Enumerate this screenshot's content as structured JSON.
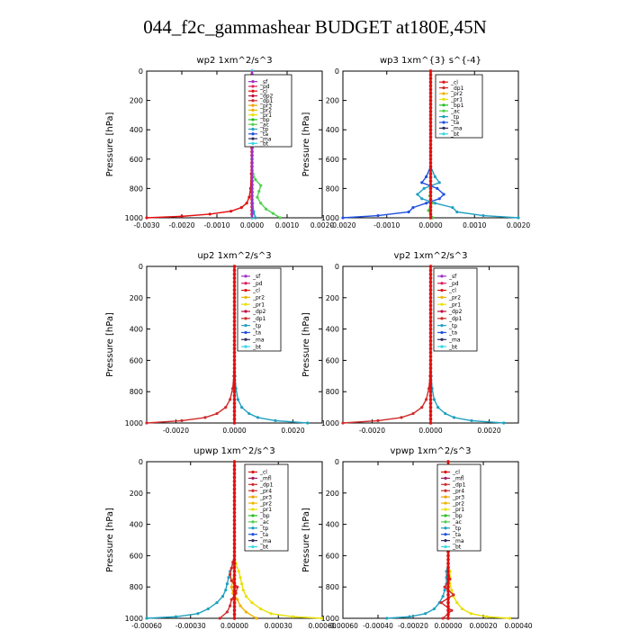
{
  "page": {
    "title": "044_f2c_gammashear  BUDGET at180E,45N"
  },
  "colors": {
    "_sf": "#9b30c8",
    "_pd": "#e0205a",
    "_cl": "#e01010",
    "_dp2": "#c01040",
    "_dp1": "#d02a2a",
    "_pr3": "#f0a000",
    "_pr2": "#f0b400",
    "_pr1": "#e8e000",
    "_bp": "#22c020",
    "_bp1": "#22c020",
    "_ac": "#50d050",
    "_tp": "#1fa0c0",
    "_ta": "#2050e0",
    "_ma": "#303060",
    "_bt": "#30d8e8",
    "_mfl": "#a02060",
    "_pr4": "#d02a2a",
    "_dp4": "#b01020"
  },
  "chart_data": [
    {
      "type": "line",
      "title": "wp2   1xm^2/s^3",
      "ylabel": "Pressure [hPa]",
      "ylim": [
        1000,
        0
      ],
      "xlim": [
        -0.003,
        0.002
      ],
      "xticks": [
        "-0.0030",
        "-0.0020",
        "-0.0010",
        "0.0000",
        "0.0010",
        "0.0020"
      ],
      "xtick_values": [
        -0.003,
        -0.002,
        -0.001,
        0.0,
        0.001,
        0.002
      ],
      "yticks": [
        "0",
        "200",
        "400",
        "600",
        "800",
        "1000"
      ],
      "ytick_values": [
        0,
        200,
        400,
        600,
        800,
        1000
      ],
      "legend": [
        "_sf",
        "_pd",
        "_cl",
        "_dp2",
        "_dp1",
        "_pr3",
        "_pr2",
        "_pr1",
        "_bp",
        "_ac",
        "_tp",
        "_ta",
        "_ma",
        "_bt"
      ],
      "legend_position": "top-right",
      "series": [
        {
          "name": "_cl",
          "p": [
            1000,
            990,
            975,
            955,
            930,
            900,
            860,
            800,
            700,
            500,
            0
          ],
          "values": [
            -0.003,
            -0.002,
            -0.0012,
            -0.0006,
            -0.0003,
            -0.00015,
            -8e-05,
            -4e-05,
            -2e-05,
            0,
            0
          ]
        },
        {
          "name": "_ac",
          "p": [
            1000,
            970,
            940,
            900,
            860,
            820,
            780,
            740,
            700,
            600,
            0
          ],
          "values": [
            0.0008,
            0.0006,
            0.0004,
            0.00025,
            0.00015,
            0.0002,
            0.00025,
            0.0001,
            3e-05,
            0,
            0
          ]
        },
        {
          "name": "_tp",
          "p": [
            1000,
            960,
            900,
            800,
            600,
            0
          ],
          "values": [
            0.0001,
            5e-05,
            2e-05,
            0,
            0,
            0
          ]
        },
        {
          "name": "_sf",
          "p": [
            1000,
            0
          ],
          "values": [
            0,
            0
          ]
        },
        {
          "name": "_bt",
          "p": [
            1000,
            0
          ],
          "values": [
            0,
            0
          ]
        }
      ]
    },
    {
      "type": "line",
      "title": "wp3   1xm^{3} s^{-4}",
      "ylabel": "Pressure [hPa]",
      "ylim": [
        1000,
        0
      ],
      "xlim": [
        -0.002,
        0.002
      ],
      "xticks": [
        "-0.0020",
        "-0.0010",
        "0.0000",
        "0.0010",
        "0.0020"
      ],
      "xtick_values": [
        -0.002,
        -0.001,
        0.0,
        0.001,
        0.002
      ],
      "yticks": [
        "0",
        "200",
        "400",
        "600",
        "800",
        "1000"
      ],
      "ytick_values": [
        0,
        200,
        400,
        600,
        800,
        1000
      ],
      "legend": [
        "_cl",
        "_dp1",
        "_pr2",
        "_pr1",
        "_bp1",
        "_ac",
        "_tp",
        "_ta",
        "_ma",
        "_bt"
      ],
      "legend_position": "top-right",
      "series": [
        {
          "name": "_ta",
          "p": [
            1000,
            985,
            960,
            930,
            900,
            870,
            840,
            800,
            760,
            720,
            650,
            0
          ],
          "values": [
            -0.002,
            -0.0012,
            -0.0005,
            -0.0004,
            -0.0001,
            0.0002,
            0.0003,
            0.00015,
            -0.0002,
            -0.0001,
            0,
            0
          ]
        },
        {
          "name": "_tp",
          "p": [
            1000,
            985,
            960,
            930,
            900,
            870,
            840,
            800,
            760,
            720,
            650,
            0
          ],
          "values": [
            0.002,
            0.0012,
            0.0006,
            0.0005,
            0.0001,
            -0.0002,
            -0.0003,
            -0.00015,
            0.0002,
            0.0001,
            0,
            0
          ]
        },
        {
          "name": "_ac",
          "p": [
            1000,
            950,
            900,
            850,
            800,
            0
          ],
          "values": [
            5e-05,
            -5e-05,
            3e-05,
            -2e-05,
            0,
            0
          ]
        },
        {
          "name": "_cl",
          "p": [
            1000,
            0
          ],
          "values": [
            0,
            0
          ]
        }
      ]
    },
    {
      "type": "line",
      "title": "up2   1xm^2/s^3",
      "ylabel": "Pressure [hPa]",
      "ylim": [
        1000,
        0
      ],
      "xlim": [
        -0.003,
        0.003
      ],
      "xticks": [
        "-0.0020",
        "0.0000",
        "0.0020"
      ],
      "xtick_values": [
        -0.002,
        0.0,
        0.002
      ],
      "yticks": [
        "0",
        "200",
        "400",
        "600",
        "800",
        "1000"
      ],
      "ytick_values": [
        0,
        200,
        400,
        600,
        800,
        1000
      ],
      "legend": [
        "_sf",
        "_pd",
        "_cl",
        "_pr2",
        "_pr1",
        "_dp2",
        "_dp1",
        "_tp",
        "_ta",
        "_ma",
        "_bt"
      ],
      "legend_position": "top-right",
      "series": [
        {
          "name": "_dp1",
          "p": [
            1000,
            985,
            965,
            940,
            900,
            850,
            780,
            700,
            500,
            0
          ],
          "values": [
            -0.003,
            -0.0018,
            -0.001,
            -0.0006,
            -0.0003,
            -0.00015,
            -6e-05,
            -2e-05,
            0,
            0
          ]
        },
        {
          "name": "_tp",
          "p": [
            1000,
            985,
            965,
            940,
            900,
            850,
            780,
            700,
            500,
            0
          ],
          "values": [
            0.0025,
            0.0014,
            0.0008,
            0.0005,
            0.00025,
            0.00012,
            5e-05,
            2e-05,
            0,
            0
          ]
        },
        {
          "name": "_cl",
          "p": [
            1000,
            0
          ],
          "values": [
            0,
            0
          ]
        }
      ]
    },
    {
      "type": "line",
      "title": "vp2   1xm^2/s^3",
      "ylabel": "Pressure [hPa]",
      "ylim": [
        1000,
        0
      ],
      "xlim": [
        -0.003,
        0.003
      ],
      "xticks": [
        "-0.0020",
        "0.0000",
        "0.0020"
      ],
      "xtick_values": [
        -0.002,
        0.0,
        0.002
      ],
      "yticks": [
        "0",
        "200",
        "400",
        "600",
        "800",
        "1000"
      ],
      "ytick_values": [
        0,
        200,
        400,
        600,
        800,
        1000
      ],
      "legend": [
        "_sf",
        "_pd",
        "_cl",
        "_pr2",
        "_pr1",
        "_dp2",
        "_dp1",
        "_tp",
        "_ta",
        "_ma",
        "_bt"
      ],
      "legend_position": "top-right",
      "series": [
        {
          "name": "_dp1",
          "p": [
            1000,
            985,
            965,
            940,
            900,
            850,
            780,
            700,
            500,
            0
          ],
          "values": [
            -0.003,
            -0.0018,
            -0.001,
            -0.0006,
            -0.0003,
            -0.00015,
            -6e-05,
            -2e-05,
            0,
            0
          ]
        },
        {
          "name": "_tp",
          "p": [
            1000,
            985,
            965,
            940,
            900,
            850,
            780,
            700,
            500,
            0
          ],
          "values": [
            0.0025,
            0.0014,
            0.0008,
            0.0005,
            0.00025,
            0.00012,
            5e-05,
            2e-05,
            0,
            0
          ]
        },
        {
          "name": "_cl",
          "p": [
            1000,
            0
          ],
          "values": [
            0,
            0
          ]
        }
      ]
    },
    {
      "type": "line",
      "title": "upwp   1xm^2/s^3",
      "ylabel": "Pressure [hPa]",
      "ylim": [
        1000,
        0
      ],
      "xlim": [
        -0.0006,
        0.0006
      ],
      "xticks": [
        "-0.00060",
        "-0.00030",
        "0.00000",
        "0.00030",
        "0.00060"
      ],
      "xtick_values": [
        -0.0006,
        -0.0003,
        0.0,
        0.0003,
        0.0006
      ],
      "yticks": [
        "0",
        "200",
        "400",
        "600",
        "800",
        "1000"
      ],
      "ytick_values": [
        0,
        200,
        400,
        600,
        800,
        1000
      ],
      "legend": [
        "_cl",
        "_mfl",
        "_dp1",
        "_pr4",
        "_pr3",
        "_pr2",
        "_pr1",
        "_bp",
        "_ac",
        "_tp",
        "_ta",
        "_ma",
        "_bt"
      ],
      "legend_position": "top-right",
      "series": [
        {
          "name": "_pr1",
          "p": [
            1000,
            990,
            970,
            940,
            900,
            860,
            820,
            780,
            740,
            700,
            650,
            600,
            0
          ],
          "values": [
            0.0006,
            0.0004,
            0.00025,
            0.00018,
            0.00012,
            8e-05,
            6e-05,
            5e-05,
            4e-05,
            3e-05,
            1e-05,
            0,
            0
          ]
        },
        {
          "name": "_tp",
          "p": [
            1000,
            990,
            970,
            940,
            900,
            860,
            820,
            780,
            740,
            700,
            650,
            600,
            0
          ],
          "values": [
            -0.0006,
            -0.0004,
            -0.00025,
            -0.00018,
            -0.00012,
            -8e-05,
            -6e-05,
            -5e-05,
            -4e-05,
            -3e-05,
            -1e-05,
            0,
            0
          ]
        },
        {
          "name": "_pr2",
          "p": [
            1000,
            960,
            920,
            880,
            840,
            800,
            700,
            0
          ],
          "values": [
            0.00015,
            8e-05,
            4e-05,
            2e-05,
            -1e-05,
            -2e-05,
            0,
            0
          ]
        },
        {
          "name": "_dp1",
          "p": [
            1000,
            960,
            920,
            880,
            840,
            800,
            760,
            720,
            680,
            640,
            600,
            0
          ],
          "values": [
            -0.0001,
            -5e-05,
            -3e-05,
            -2e-05,
            1e-05,
            2e-05,
            -2e-05,
            -3e-05,
            -2e-05,
            -1e-05,
            0,
            0
          ]
        },
        {
          "name": "_cl",
          "p": [
            1000,
            0
          ],
          "values": [
            0,
            0
          ]
        }
      ]
    },
    {
      "type": "line",
      "title": "vpwp   1xm^2/s^3",
      "ylabel": "Pressure [hPa]",
      "ylim": [
        1000,
        0
      ],
      "xlim": [
        -0.0006,
        0.0004
      ],
      "xticks": [
        "-0.00060",
        "-0.00040",
        "-0.00020",
        "0.00000",
        "0.00020",
        "0.00040"
      ],
      "xtick_values": [
        -0.0006,
        -0.0004,
        -0.0002,
        0.0,
        0.0002,
        0.0004
      ],
      "yticks": [
        "0",
        "200",
        "400",
        "600",
        "800",
        "1000"
      ],
      "ytick_values": [
        0,
        200,
        400,
        600,
        800,
        1000
      ],
      "legend": [
        "_cl",
        "_mfl",
        "_dp1",
        "_pr4",
        "_pr3",
        "_pr2",
        "_pr1",
        "_bp",
        "_ac",
        "_tp",
        "_ta",
        "_ma",
        "_bt"
      ],
      "legend_position": "top-right",
      "series": [
        {
          "name": "_pr1",
          "p": [
            1000,
            990,
            970,
            940,
            900,
            860,
            820,
            780,
            740,
            700,
            650,
            0
          ],
          "values": [
            0.00035,
            0.00022,
            0.00013,
            8e-05,
            5e-05,
            3e-05,
            2e-05,
            1e-05,
            1e-05,
            1e-05,
            0,
            0
          ]
        },
        {
          "name": "_tp",
          "p": [
            1000,
            990,
            970,
            940,
            900,
            860,
            820,
            780,
            740,
            700,
            650,
            0
          ],
          "values": [
            -0.00035,
            -0.00022,
            -0.00013,
            -8e-05,
            -5e-05,
            -3e-05,
            -2e-05,
            -1e-05,
            -1e-05,
            -1e-05,
            0,
            0
          ]
        },
        {
          "name": "_dp1",
          "p": [
            1000,
            950,
            900,
            850,
            800,
            750,
            700,
            0
          ],
          "values": [
            -3e-05,
            2e-05,
            -4e-05,
            3e-05,
            -2e-05,
            1e-05,
            0,
            0
          ]
        },
        {
          "name": "_cl",
          "p": [
            1000,
            0
          ],
          "values": [
            0,
            0
          ]
        }
      ]
    }
  ]
}
